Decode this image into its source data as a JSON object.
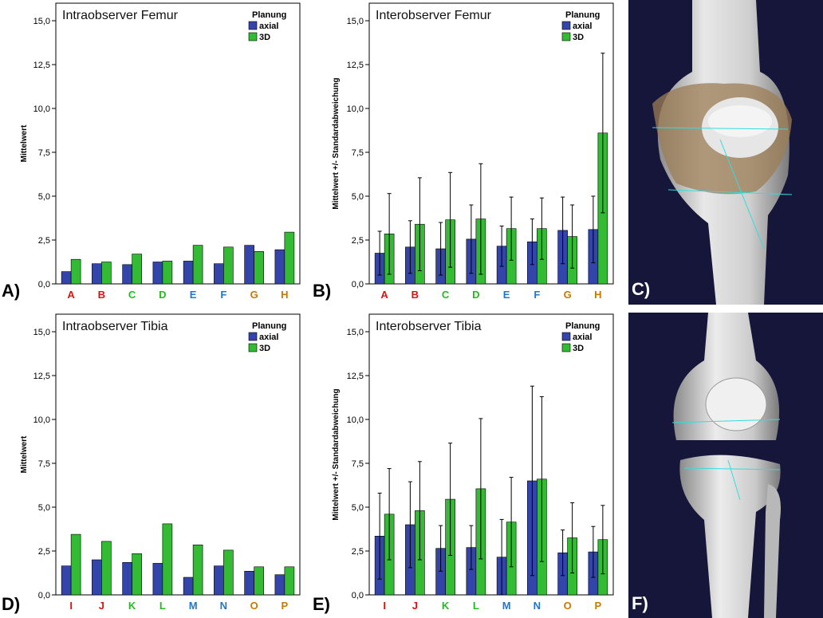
{
  "colors": {
    "axial": "#3344aa",
    "d3": "#33bb33",
    "red": "#dd1111",
    "green": "#22bb22",
    "blue": "#2277cc",
    "orange": "#cc7700",
    "photo_bg": "#16163a"
  },
  "legend": {
    "title": "Planung",
    "axial": "axial",
    "d3": "3D"
  },
  "panels": {
    "a": "A)",
    "b": "B)",
    "c": "C)",
    "d": "D)",
    "e": "E)",
    "f": "F)"
  },
  "chart_data": [
    {
      "id": "chartA",
      "type": "bar",
      "title": "Intraobserver Femur",
      "ylabel": "Mittelwert",
      "ylim": [
        0,
        16
      ],
      "yticks": [
        "0,0",
        "2,5",
        "5,0",
        "7,5",
        "10,0",
        "12,5",
        "15,0"
      ],
      "categories": [
        "A",
        "B",
        "C",
        "D",
        "E",
        "F",
        "G",
        "H"
      ],
      "category_colors": [
        "red",
        "red",
        "green",
        "green",
        "blue",
        "blue",
        "orange",
        "orange"
      ],
      "error_bars": false,
      "series": [
        {
          "name": "axial",
          "values": [
            0.7,
            1.15,
            1.1,
            1.25,
            1.3,
            1.15,
            2.2,
            1.95
          ]
        },
        {
          "name": "3D",
          "values": [
            1.4,
            1.25,
            1.7,
            1.3,
            2.2,
            2.1,
            1.85,
            2.95
          ]
        }
      ]
    },
    {
      "id": "chartB",
      "type": "bar",
      "title": "Interobserver Femur",
      "ylabel": "Mittelwert +/- Standardabweichung",
      "ylim": [
        0,
        16
      ],
      "yticks": [
        "0,0",
        "2,5",
        "5,0",
        "7,5",
        "10,0",
        "12,5",
        "15,0"
      ],
      "categories": [
        "A",
        "B",
        "C",
        "D",
        "E",
        "F",
        "G",
        "H"
      ],
      "category_colors": [
        "red",
        "red",
        "green",
        "green",
        "blue",
        "blue",
        "orange",
        "orange"
      ],
      "error_bars": true,
      "series": [
        {
          "name": "axial",
          "values": [
            1.75,
            2.1,
            2.0,
            2.55,
            2.15,
            2.4,
            3.05,
            3.1
          ],
          "sd": [
            1.25,
            1.5,
            1.5,
            1.95,
            1.15,
            1.3,
            1.9,
            1.9
          ]
        },
        {
          "name": "3D",
          "values": [
            2.85,
            3.4,
            3.65,
            3.7,
            3.15,
            3.15,
            2.7,
            8.6
          ],
          "sd": [
            2.3,
            2.65,
            2.7,
            3.15,
            1.8,
            1.75,
            1.8,
            4.55
          ]
        }
      ]
    },
    {
      "id": "chartD",
      "type": "bar",
      "title": "Intraobserver Tibia",
      "ylabel": "Mittelwert",
      "ylim": [
        0,
        16
      ],
      "yticks": [
        "0,0",
        "2,5",
        "5,0",
        "7,5",
        "10,0",
        "12,5",
        "15,0"
      ],
      "categories": [
        "I",
        "J",
        "K",
        "L",
        "M",
        "N",
        "O",
        "P"
      ],
      "category_colors": [
        "red",
        "red",
        "green",
        "green",
        "blue",
        "blue",
        "orange",
        "orange"
      ],
      "error_bars": false,
      "series": [
        {
          "name": "axial",
          "values": [
            1.65,
            2.0,
            1.85,
            1.8,
            1.0,
            1.65,
            1.35,
            1.15
          ]
        },
        {
          "name": "3D",
          "values": [
            3.45,
            3.05,
            2.35,
            4.05,
            2.85,
            2.55,
            1.6,
            1.6
          ]
        }
      ]
    },
    {
      "id": "chartE",
      "type": "bar",
      "title": "Interobserver Tibia",
      "ylabel": "Mittelwert +/- Standardabweichung",
      "ylim": [
        0,
        16
      ],
      "yticks": [
        "0,0",
        "2,5",
        "5,0",
        "7,5",
        "10,0",
        "12,5",
        "15,0"
      ],
      "categories": [
        "I",
        "J",
        "K",
        "L",
        "M",
        "N",
        "O",
        "P"
      ],
      "category_colors": [
        "red",
        "red",
        "green",
        "green",
        "blue",
        "blue",
        "orange",
        "orange"
      ],
      "error_bars": true,
      "series": [
        {
          "name": "axial",
          "values": [
            3.35,
            4.0,
            2.65,
            2.7,
            2.15,
            6.5,
            2.4,
            2.45
          ],
          "sd": [
            2.45,
            2.45,
            1.3,
            1.25,
            2.15,
            5.4,
            1.3,
            1.45
          ]
        },
        {
          "name": "3D",
          "values": [
            4.6,
            4.8,
            5.45,
            6.05,
            4.15,
            6.6,
            3.25,
            3.15
          ],
          "sd": [
            2.6,
            2.8,
            3.2,
            4.0,
            2.55,
            4.7,
            2.0,
            1.95
          ]
        }
      ]
    }
  ]
}
